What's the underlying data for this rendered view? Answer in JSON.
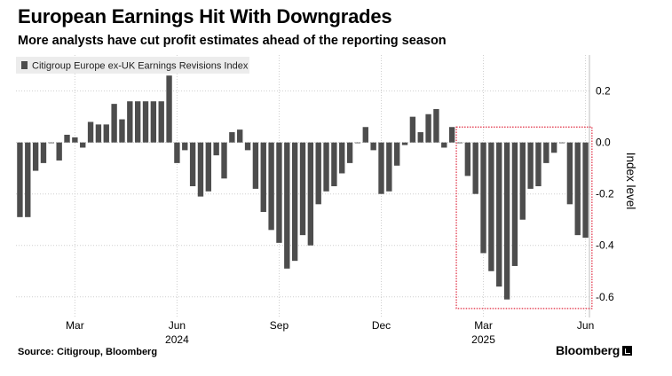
{
  "title": "European Earnings Hit With Downgrades",
  "subtitle": "More analysts have cut profit estimates ahead of the reporting season",
  "source": "Source: Citigroup, Bloomberg",
  "brand": "Bloomberg",
  "colors": {
    "bar": "#4d4d4d",
    "grid": "#cfcfcf",
    "highlight": "#e0293f",
    "legend_bg": "#ececec"
  },
  "chart_data": {
    "type": "bar",
    "title": "European Earnings Hit With Downgrades",
    "legend": [
      "Citigroup Europe ex-UK Earnings Revisions Index"
    ],
    "legend_position": "top-left",
    "xlabel": "",
    "ylabel": "Index level",
    "y_axis_side": "right",
    "ylim": [
      -0.68,
      0.34
    ],
    "yticks": [
      0.2,
      0.0,
      -0.2,
      -0.4,
      -0.6
    ],
    "ytick_labels": [
      "0.2",
      "0.0",
      "-0.2",
      "-0.4",
      "-0.6"
    ],
    "x_tick_labels": [
      "Mar",
      "Jun",
      "Sep",
      "Dec",
      "Mar",
      "Jun"
    ],
    "x_tick_index": [
      7,
      20,
      33,
      46,
      59,
      72
    ],
    "year_labels": [
      "2024",
      "2025"
    ],
    "year_label_index": [
      20,
      59
    ],
    "grid": true,
    "highlight_region": {
      "from_index": 56,
      "to_index": 73,
      "style": "dotted red rectangle"
    },
    "values": [
      -0.29,
      -0.29,
      -0.11,
      -0.08,
      0.0,
      -0.07,
      0.03,
      0.02,
      -0.02,
      0.08,
      0.07,
      0.07,
      0.15,
      0.09,
      0.16,
      0.16,
      0.16,
      0.16,
      0.16,
      0.26,
      -0.08,
      -0.03,
      -0.17,
      -0.21,
      -0.19,
      -0.05,
      -0.14,
      0.04,
      0.05,
      -0.03,
      -0.18,
      -0.27,
      -0.34,
      -0.39,
      -0.49,
      -0.46,
      -0.36,
      -0.4,
      -0.24,
      -0.19,
      -0.17,
      -0.12,
      -0.08,
      0.0,
      0.06,
      -0.03,
      -0.2,
      -0.19,
      -0.09,
      -0.01,
      0.1,
      0.04,
      0.11,
      0.13,
      -0.02,
      0.06,
      0.0,
      -0.13,
      -0.2,
      -0.43,
      -0.5,
      -0.56,
      -0.61,
      -0.48,
      -0.3,
      -0.18,
      -0.17,
      -0.08,
      -0.04,
      0.0,
      -0.24,
      -0.36,
      -0.37
    ]
  }
}
